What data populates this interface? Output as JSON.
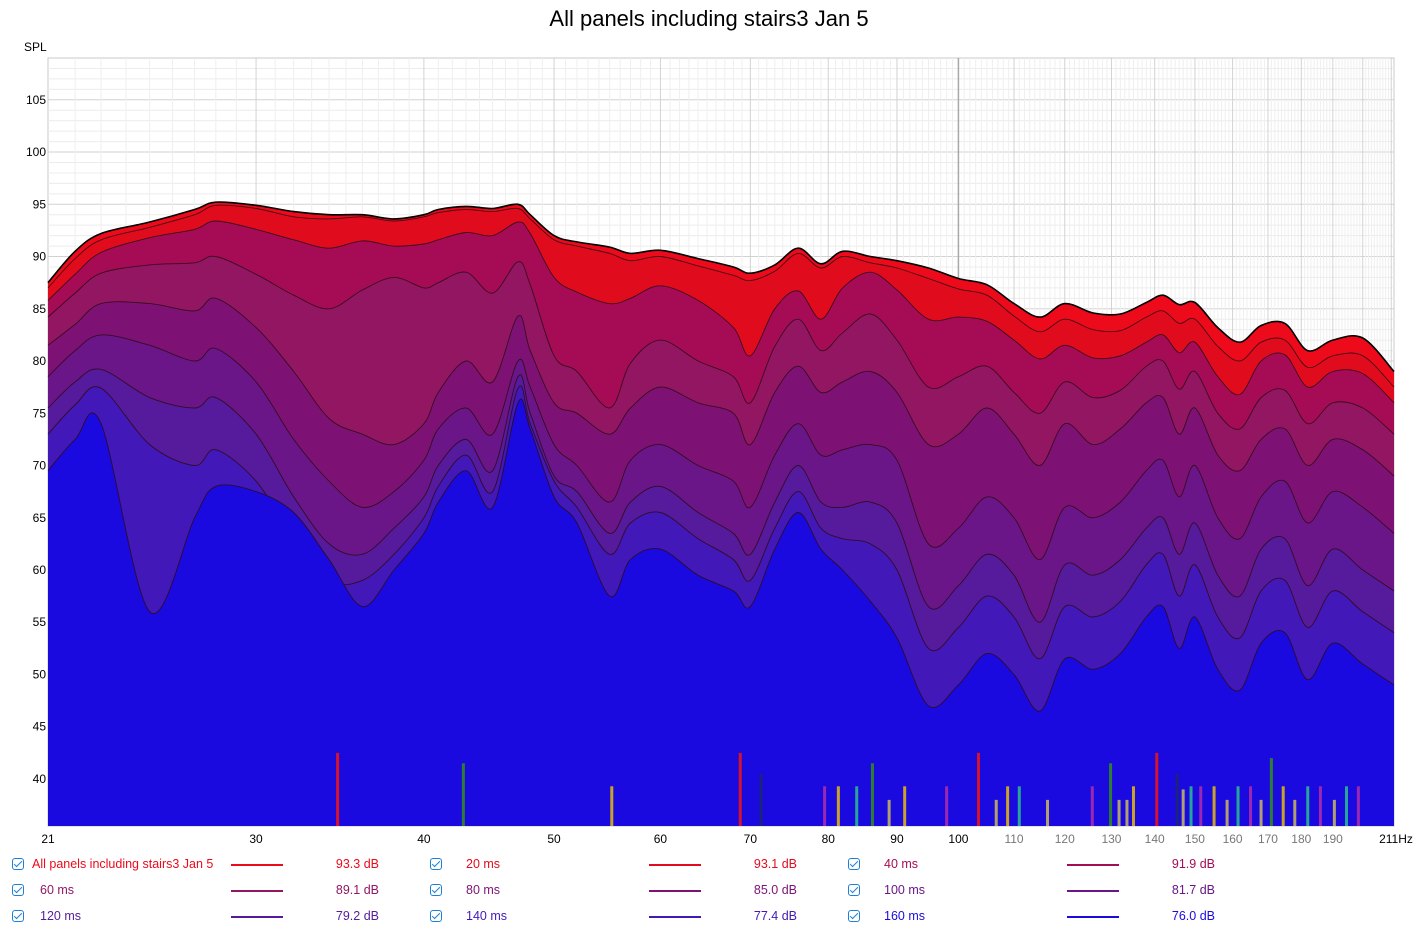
{
  "chart_data": {
    "type": "area",
    "title": "All panels including stairs3 Jan 5",
    "ylabel": "SPL",
    "xunit": "Hz",
    "xscale": "log",
    "xlim": [
      21,
      211
    ],
    "ylim": [
      35.5,
      109
    ],
    "x_ticks": [
      {
        "value": 21,
        "label": "21"
      },
      {
        "value": 30,
        "label": "30"
      },
      {
        "value": 40,
        "label": "40"
      },
      {
        "value": 50,
        "label": "50"
      },
      {
        "value": 60,
        "label": "60"
      },
      {
        "value": 70,
        "label": "70"
      },
      {
        "value": 80,
        "label": "80"
      },
      {
        "value": 90,
        "label": "90"
      },
      {
        "value": 100,
        "label": "100"
      },
      {
        "value": 110,
        "label": "110"
      },
      {
        "value": 120,
        "label": "120"
      },
      {
        "value": 130,
        "label": "130"
      },
      {
        "value": 140,
        "label": "140"
      },
      {
        "value": 150,
        "label": "150"
      },
      {
        "value": 160,
        "label": "160"
      },
      {
        "value": 170,
        "label": "170"
      },
      {
        "value": 180,
        "label": "180"
      },
      {
        "value": 190,
        "label": "190"
      },
      {
        "value": 211,
        "label": "211Hz"
      }
    ],
    "y_ticks": [
      40,
      45,
      50,
      55,
      60,
      65,
      70,
      75,
      80,
      85,
      90,
      95,
      100,
      105
    ],
    "grid": true,
    "legend_position": "bottom",
    "x": [
      21,
      22,
      23,
      25,
      27,
      28,
      30,
      32,
      34,
      36,
      38,
      40,
      41,
      43,
      45,
      47,
      48,
      50,
      52,
      55,
      57,
      60,
      64,
      68,
      70,
      73,
      76,
      79,
      82,
      86,
      90,
      95,
      100,
      105,
      110,
      115,
      120,
      126,
      132,
      138,
      142,
      146,
      150,
      156,
      162,
      168,
      175,
      182,
      190,
      200,
      211
    ],
    "series": [
      {
        "name": "All panels including stairs3 Jan 5",
        "color": "#ec0a1b",
        "values": [
          87.5,
          90.5,
          92.2,
          93.3,
          94.5,
          95.2,
          94.9,
          94.3,
          94.0,
          94.0,
          93.6,
          94.0,
          94.5,
          94.8,
          94.6,
          95.0,
          94.0,
          92.0,
          91.4,
          90.9,
          90.3,
          90.6,
          89.8,
          89.0,
          88.4,
          89.2,
          90.8,
          89.3,
          90.5,
          90.0,
          89.6,
          88.9,
          87.9,
          87.3,
          85.5,
          84.2,
          85.5,
          84.6,
          84.5,
          85.6,
          86.3,
          85.4,
          85.6,
          83.2,
          81.8,
          83.4,
          83.6,
          81.0,
          82.0,
          82.2,
          79.0
        ]
      },
      {
        "name": "20 ms",
        "color": "#e00c1e",
        "values": [
          87.0,
          89.8,
          91.6,
          92.8,
          94.0,
          94.9,
          94.6,
          93.8,
          93.6,
          93.8,
          93.4,
          93.8,
          94.2,
          94.5,
          94.3,
          94.6,
          93.6,
          91.6,
          91.0,
          90.3,
          89.6,
          90.0,
          89.1,
          88.2,
          87.7,
          88.6,
          90.3,
          88.9,
          90.0,
          89.4,
          88.9,
          87.9,
          86.9,
          86.3,
          84.3,
          82.8,
          84.0,
          83.0,
          82.9,
          84.2,
          84.8,
          83.6,
          84.0,
          81.4,
          80.0,
          81.8,
          82.0,
          79.4,
          80.5,
          80.5,
          77.5
        ]
      },
      {
        "name": "40 ms",
        "color": "#a60c56",
        "values": [
          85.8,
          88.3,
          90.4,
          91.8,
          92.6,
          93.4,
          92.6,
          91.6,
          90.8,
          91.5,
          91.0,
          91.2,
          91.6,
          92.3,
          92.0,
          93.3,
          92.2,
          88.0,
          86.6,
          85.5,
          86.0,
          87.2,
          85.8,
          83.2,
          80.5,
          85.0,
          86.7,
          84.0,
          87.0,
          88.5,
          86.8,
          84.0,
          84.2,
          83.8,
          82.0,
          80.2,
          81.5,
          80.3,
          80.5,
          81.8,
          82.5,
          80.8,
          81.8,
          78.5,
          76.8,
          80.0,
          80.6,
          77.5,
          79.0,
          78.8,
          76.0
        ]
      },
      {
        "name": "60 ms",
        "color": "#931662",
        "values": [
          84.2,
          86.5,
          88.4,
          89.2,
          89.4,
          90.0,
          88.3,
          86.3,
          85.0,
          86.8,
          88.0,
          87.0,
          87.5,
          88.5,
          86.5,
          89.5,
          87.3,
          80.5,
          79.0,
          75.5,
          79.8,
          82.0,
          80.0,
          78.5,
          76.0,
          81.4,
          84.0,
          81.0,
          82.7,
          84.5,
          82.0,
          77.5,
          78.5,
          79.5,
          77.0,
          75.0,
          78.0,
          76.5,
          77.2,
          79.5,
          80.0,
          77.3,
          79.0,
          75.0,
          73.5,
          76.5,
          77.2,
          74.0,
          76.0,
          75.5,
          73.0
        ]
      },
      {
        "name": "80 ms",
        "color": "#7e1274",
        "values": [
          81.5,
          83.5,
          85.5,
          85.5,
          84.8,
          86.0,
          83.2,
          79.0,
          74.5,
          73.0,
          72.0,
          74.0,
          77.0,
          80.0,
          78.0,
          84.3,
          81.0,
          76.0,
          75.0,
          73.0,
          75.5,
          77.5,
          76.0,
          75.0,
          72.0,
          77.0,
          79.5,
          77.0,
          78.0,
          79.0,
          77.0,
          72.0,
          73.0,
          75.5,
          73.0,
          70.0,
          74.0,
          72.0,
          73.5,
          76.0,
          76.5,
          73.0,
          75.5,
          71.0,
          69.5,
          72.5,
          73.5,
          70.0,
          72.5,
          71.5,
          69.0
        ]
      },
      {
        "name": "100 ms",
        "color": "#6a1688",
        "values": [
          78.5,
          81.0,
          82.5,
          81.5,
          80.0,
          81.2,
          78.0,
          72.5,
          68.5,
          66.0,
          67.5,
          70.5,
          73.5,
          75.5,
          73.0,
          80.0,
          77.5,
          72.0,
          70.0,
          66.5,
          70.5,
          72.0,
          70.0,
          68.5,
          66.0,
          71.0,
          74.0,
          71.0,
          71.5,
          72.0,
          70.5,
          62.5,
          64.0,
          67.0,
          65.0,
          61.0,
          66.0,
          65.0,
          66.5,
          69.5,
          70.5,
          67.0,
          70.0,
          65.0,
          63.0,
          67.0,
          68.5,
          64.5,
          67.5,
          66.0,
          63.5
        ]
      },
      {
        "name": "120 ms",
        "color": "#561a9c",
        "values": [
          75.5,
          78.0,
          79.2,
          76.5,
          75.5,
          76.5,
          73.0,
          67.0,
          62.5,
          61.5,
          64.0,
          67.0,
          70.0,
          72.5,
          69.5,
          78.5,
          75.0,
          69.0,
          67.5,
          63.5,
          66.5,
          68.0,
          65.5,
          63.5,
          61.5,
          66.5,
          70.0,
          66.5,
          66.0,
          66.5,
          64.5,
          56.5,
          58.5,
          61.5,
          59.5,
          55.0,
          60.5,
          59.5,
          61.0,
          64.0,
          65.0,
          61.5,
          64.5,
          59.5,
          57.5,
          62.0,
          63.0,
          58.5,
          62.0,
          60.0,
          58.0
        ]
      },
      {
        "name": "140 ms",
        "color": "#4218b8",
        "values": [
          73.0,
          75.8,
          77.4,
          72.0,
          70.0,
          71.5,
          68.5,
          63.0,
          59.0,
          59.0,
          61.5,
          65.0,
          68.0,
          71.0,
          67.5,
          77.4,
          74.0,
          68.5,
          66.0,
          61.5,
          64.5,
          65.5,
          63.0,
          61.0,
          59.0,
          64.0,
          67.5,
          64.0,
          63.0,
          62.5,
          60.0,
          52.5,
          54.5,
          57.5,
          55.5,
          51.5,
          56.5,
          55.5,
          57.0,
          60.5,
          61.5,
          57.5,
          60.5,
          55.5,
          53.5,
          58.0,
          59.0,
          54.5,
          58.0,
          56.0,
          54.0
        ]
      },
      {
        "name": "160 ms",
        "color": "#1a0ae0",
        "values": [
          69.5,
          72.5,
          74.0,
          56.0,
          65.0,
          68.0,
          67.5,
          65.5,
          61.0,
          56.5,
          60.0,
          63.5,
          66.5,
          69.5,
          66.0,
          76.0,
          73.5,
          67.0,
          64.5,
          57.5,
          61.0,
          62.0,
          59.5,
          58.0,
          56.5,
          62.0,
          65.5,
          62.0,
          60.0,
          57.0,
          53.5,
          47.0,
          49.0,
          52.0,
          50.0,
          46.5,
          51.5,
          50.5,
          52.0,
          55.5,
          56.5,
          52.5,
          55.5,
          50.5,
          48.5,
          53.0,
          54.0,
          49.5,
          53.0,
          51.0,
          49.0
        ]
      }
    ],
    "values_db": [
      "93.3 dB",
      "93.1 dB",
      "91.9 dB",
      "89.1 dB",
      "85.0 dB",
      "81.7 dB",
      "79.2 dB",
      "77.4 dB",
      "76.0 dB"
    ],
    "markers": [
      {
        "x": 34.5,
        "top": 42.5,
        "color": "#d6132a"
      },
      {
        "x": 42.8,
        "top": 41.5,
        "color": "#2e7d32"
      },
      {
        "x": 55.2,
        "top": 39.3,
        "color": "#c9a227"
      },
      {
        "x": 68.8,
        "top": 42.5,
        "color": "#d6132a"
      },
      {
        "x": 71.3,
        "top": 40.5,
        "color": "#1a237e"
      },
      {
        "x": 79.5,
        "top": 39.3,
        "color": "#9c27b0"
      },
      {
        "x": 81.4,
        "top": 39.3,
        "color": "#c9a227"
      },
      {
        "x": 84.0,
        "top": 39.3,
        "color": "#26a69a"
      },
      {
        "x": 86.3,
        "top": 41.5,
        "color": "#2e7d32"
      },
      {
        "x": 88.8,
        "top": 38.0,
        "color": "#b0a070"
      },
      {
        "x": 91.2,
        "top": 39.3,
        "color": "#c9a227"
      },
      {
        "x": 98.0,
        "top": 39.3,
        "color": "#9c27b0"
      },
      {
        "x": 103.5,
        "top": 42.5,
        "color": "#d6132a"
      },
      {
        "x": 106.7,
        "top": 38.0,
        "color": "#b0a070"
      },
      {
        "x": 108.8,
        "top": 39.3,
        "color": "#c9a227"
      },
      {
        "x": 111.0,
        "top": 39.3,
        "color": "#26a69a"
      },
      {
        "x": 116.5,
        "top": 38.0,
        "color": "#b0a070"
      },
      {
        "x": 125.8,
        "top": 39.3,
        "color": "#9c27b0"
      },
      {
        "x": 129.8,
        "top": 41.5,
        "color": "#2e7d32"
      },
      {
        "x": 131.7,
        "top": 38.0,
        "color": "#b0a070"
      },
      {
        "x": 133.5,
        "top": 38.0,
        "color": "#b0a070"
      },
      {
        "x": 135.0,
        "top": 39.3,
        "color": "#c9a227"
      },
      {
        "x": 140.5,
        "top": 42.5,
        "color": "#d6132a"
      },
      {
        "x": 145.5,
        "top": 40.5,
        "color": "#1a237e"
      },
      {
        "x": 147.0,
        "top": 39.0,
        "color": "#b0a070"
      },
      {
        "x": 149.0,
        "top": 39.3,
        "color": "#26a69a"
      },
      {
        "x": 151.5,
        "top": 39.3,
        "color": "#9c27b0"
      },
      {
        "x": 155.0,
        "top": 39.3,
        "color": "#c9a227"
      },
      {
        "x": 158.5,
        "top": 38.0,
        "color": "#b0a070"
      },
      {
        "x": 161.5,
        "top": 39.3,
        "color": "#26a69a"
      },
      {
        "x": 165.0,
        "top": 39.3,
        "color": "#9c27b0"
      },
      {
        "x": 168.0,
        "top": 38.0,
        "color": "#b0a070"
      },
      {
        "x": 171.0,
        "top": 42.0,
        "color": "#2e7d32"
      },
      {
        "x": 174.5,
        "top": 39.3,
        "color": "#c9a227"
      },
      {
        "x": 178.0,
        "top": 38.0,
        "color": "#b0a070"
      },
      {
        "x": 182.0,
        "top": 39.3,
        "color": "#26a69a"
      },
      {
        "x": 186.0,
        "top": 39.3,
        "color": "#9c27b0"
      },
      {
        "x": 190.5,
        "top": 38.0,
        "color": "#b0a070"
      },
      {
        "x": 194.5,
        "top": 39.3,
        "color": "#26a69a"
      },
      {
        "x": 198.5,
        "top": 39.3,
        "color": "#9c27b0"
      }
    ]
  }
}
